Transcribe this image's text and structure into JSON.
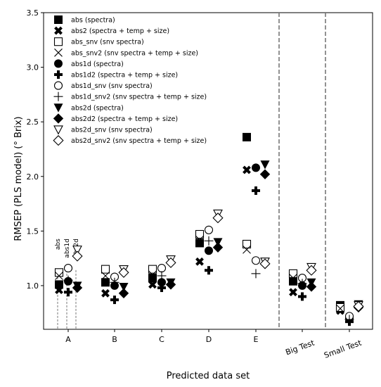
{
  "chart_data": {
    "type": "scatter",
    "xlabel": "Predicted data set",
    "ylabel": "RMSEP (PLS model) (° Brix)",
    "ylim": [
      0.6,
      3.5
    ],
    "yticks": [
      1.0,
      1.5,
      2.0,
      2.5,
      3.0,
      3.5
    ],
    "ytick_labels": [
      "1.0",
      "1.5",
      "2.0",
      "2.5",
      "3.0",
      "3.5"
    ],
    "categories": [
      "A",
      "B",
      "C",
      "D",
      "E",
      "Big Test",
      "Small Test"
    ],
    "grid": false,
    "legend_placement": "top-left",
    "separators_after": [
      "E",
      "Big Test"
    ],
    "annotations": [
      "abs",
      "abs1d",
      "abs2d"
    ],
    "series": [
      {
        "name": "abs (spectra)",
        "marker": "square-filled",
        "values": [
          1.01,
          1.03,
          1.07,
          1.39,
          2.36,
          1.04,
          0.82
        ]
      },
      {
        "name": "abs2 (spectra + temp + size)",
        "marker": "x-filled",
        "values": [
          0.96,
          0.93,
          1.01,
          1.22,
          2.06,
          0.94,
          0.77
        ]
      },
      {
        "name": "abs_snv (snv spectra)",
        "marker": "square-open",
        "values": [
          1.12,
          1.15,
          1.15,
          1.47,
          1.38,
          1.11,
          0.8
        ]
      },
      {
        "name": "abs_snv2 (snv spectra + temp + size)",
        "marker": "x-thin",
        "values": [
          1.09,
          1.09,
          1.1,
          1.42,
          1.33,
          1.07,
          0.79
        ]
      },
      {
        "name": "abs1d (spectra)",
        "marker": "circle-filled",
        "values": [
          1.04,
          1.0,
          1.03,
          1.32,
          2.08,
          1.0,
          0.7
        ]
      },
      {
        "name": "abs1d2 (spectra + temp + size)",
        "marker": "plus-filled",
        "values": [
          0.94,
          0.87,
          0.98,
          1.14,
          1.87,
          0.9,
          0.67
        ]
      },
      {
        "name": "abs1d_snv (snv spectra)",
        "marker": "circle-open",
        "values": [
          1.16,
          1.08,
          1.16,
          1.51,
          1.23,
          1.07,
          0.72
        ]
      },
      {
        "name": "abs1d_snv2 (snv spectra + temp + size)",
        "marker": "plus-thin",
        "values": [
          1.05,
          1.03,
          1.09,
          1.41,
          1.11,
          1.02,
          0.69
        ]
      },
      {
        "name": "abs2d (spectra)",
        "marker": "triangle-down-filled",
        "values": [
          1.0,
          0.99,
          1.03,
          1.4,
          2.11,
          1.03,
          0.83
        ]
      },
      {
        "name": "abs2d2 (spectra + temp + size)",
        "marker": "diamond-filled",
        "values": [
          0.98,
          0.93,
          1.01,
          1.35,
          2.02,
          0.99,
          0.8
        ]
      },
      {
        "name": "abs2d_snv (snv spectra)",
        "marker": "triangle-down-open",
        "values": [
          1.33,
          1.15,
          1.24,
          1.66,
          1.22,
          1.17,
          0.82
        ]
      },
      {
        "name": "abs2d_snv2 (snv spectra + temp + size)",
        "marker": "diamond-open",
        "values": [
          1.27,
          1.12,
          1.21,
          1.62,
          1.2,
          1.14,
          0.81
        ]
      }
    ]
  }
}
